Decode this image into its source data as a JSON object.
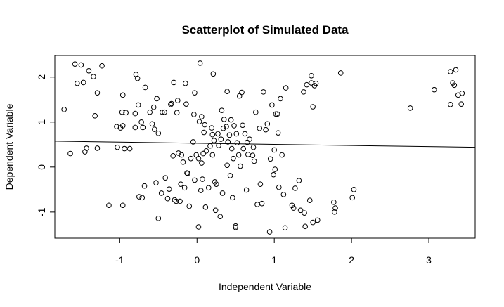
{
  "chart_data": {
    "type": "scatter",
    "title": "Scatterplot of Simulated Data",
    "xlabel": "Independent Variable",
    "ylabel": "Dependent Variable",
    "xlim": [
      -1.84,
      3.6
    ],
    "ylim": [
      -1.58,
      2.48
    ],
    "x_ticks": [
      -1,
      0,
      1,
      2,
      3
    ],
    "y_ticks": [
      -1,
      0,
      1,
      2
    ],
    "x_tick_labels": [
      "-1",
      "0",
      "1",
      "2",
      "3"
    ],
    "y_tick_labels": [
      "-1",
      "0",
      "1",
      "2"
    ],
    "grid": false,
    "fit_line": {
      "intercept": 0.53,
      "slope": -0.025
    },
    "points": [
      [
        -1.72,
        1.28
      ],
      [
        -1.64,
        0.3
      ],
      [
        -1.58,
        2.29
      ],
      [
        -1.55,
        1.86
      ],
      [
        -1.5,
        2.27
      ],
      [
        -1.47,
        1.88
      ],
      [
        -1.45,
        0.34
      ],
      [
        -1.43,
        0.42
      ],
      [
        -1.4,
        2.14
      ],
      [
        -1.34,
        2.01
      ],
      [
        -1.32,
        1.14
      ],
      [
        -1.29,
        1.65
      ],
      [
        -1.29,
        0.42
      ],
      [
        -1.23,
        2.25
      ],
      [
        -1.14,
        -0.85
      ],
      [
        -1.04,
        0.9
      ],
      [
        -1.03,
        0.44
      ],
      [
        -0.99,
        0.87
      ],
      [
        -0.97,
        1.22
      ],
      [
        -0.96,
        0.92
      ],
      [
        -0.96,
        1.6
      ],
      [
        -0.96,
        -0.85
      ],
      [
        -0.94,
        0.41
      ],
      [
        -0.92,
        1.21
      ],
      [
        -0.87,
        0.41
      ],
      [
        -0.8,
        1.19
      ],
      [
        -0.8,
        0.88
      ],
      [
        -0.79,
        2.06
      ],
      [
        -0.77,
        1.97
      ],
      [
        -0.76,
        1.38
      ],
      [
        -0.75,
        -0.66
      ],
      [
        -0.72,
        1.0
      ],
      [
        -0.71,
        -0.68
      ],
      [
        -0.7,
        0.88
      ],
      [
        -0.68,
        -0.42
      ],
      [
        -0.67,
        1.77
      ],
      [
        -0.61,
        1.22
      ],
      [
        -0.58,
        0.96
      ],
      [
        -0.56,
        1.33
      ],
      [
        -0.55,
        0.84
      ],
      [
        -0.53,
        -0.35
      ],
      [
        -0.52,
        1.52
      ],
      [
        -0.5,
        -1.14
      ],
      [
        -0.5,
        0.75
      ],
      [
        -0.46,
        -0.58
      ],
      [
        -0.45,
        1.22
      ],
      [
        -0.42,
        1.22
      ],
      [
        -0.41,
        -0.24
      ],
      [
        -0.38,
        -0.7
      ],
      [
        -0.36,
        -0.49
      ],
      [
        -0.34,
        1.39
      ],
      [
        -0.33,
        1.41
      ],
      [
        -0.31,
        0.25
      ],
      [
        -0.3,
        1.88
      ],
      [
        -0.29,
        -0.73
      ],
      [
        -0.27,
        -0.76
      ],
      [
        -0.26,
        1.21
      ],
      [
        -0.25,
        1.48
      ],
      [
        -0.24,
        0.31
      ],
      [
        -0.22,
        -0.76
      ],
      [
        -0.21,
        -0.38
      ],
      [
        -0.2,
        0.27
      ],
      [
        -0.18,
        0.11
      ],
      [
        -0.16,
        -0.46
      ],
      [
        -0.15,
        1.86
      ],
      [
        -0.14,
        1.4
      ],
      [
        -0.13,
        -0.13
      ],
      [
        -0.12,
        -0.14
      ],
      [
        -0.1,
        -0.87
      ],
      [
        -0.08,
        0.19
      ],
      [
        -0.05,
        0.56
      ],
      [
        -0.04,
        1.17
      ],
      [
        -0.03,
        -0.29
      ],
      [
        -0.03,
        1.65
      ],
      [
        -0.01,
        0.27
      ],
      [
        0.02,
        -1.33
      ],
      [
        0.02,
        0.19
      ],
      [
        0.03,
        1.01
      ],
      [
        0.04,
        2.31
      ],
      [
        0.05,
        -0.52
      ],
      [
        0.06,
        1.12
      ],
      [
        0.06,
        0.09
      ],
      [
        0.07,
        -0.27
      ],
      [
        0.08,
        0.3
      ],
      [
        0.09,
        0.77
      ],
      [
        0.1,
        0.94
      ],
      [
        0.11,
        -0.89
      ],
      [
        0.12,
        0.36
      ],
      [
        0.15,
        -0.46
      ],
      [
        0.17,
        0.47
      ],
      [
        0.19,
        0.87
      ],
      [
        0.2,
        0.27
      ],
      [
        0.2,
        0.72
      ],
      [
        0.21,
        2.07
      ],
      [
        0.22,
        0.59
      ],
      [
        0.23,
        -0.33
      ],
      [
        0.24,
        -0.96
      ],
      [
        0.25,
        -0.38
      ],
      [
        0.27,
        0.74
      ],
      [
        0.28,
        0.48
      ],
      [
        0.3,
        -1.1
      ],
      [
        0.31,
        0.62
      ],
      [
        0.32,
        1.26
      ],
      [
        0.33,
        -0.58
      ],
      [
        0.34,
        0.86
      ],
      [
        0.35,
        1.06
      ],
      [
        0.38,
        0.9
      ],
      [
        0.39,
        1.68
      ],
      [
        0.39,
        0.04
      ],
      [
        0.4,
        0.56
      ],
      [
        0.42,
        0.71
      ],
      [
        0.43,
        -0.19
      ],
      [
        0.44,
        1.05
      ],
      [
        0.45,
        0.41
      ],
      [
        0.46,
        -0.68
      ],
      [
        0.47,
        0.19
      ],
      [
        0.48,
        0.92
      ],
      [
        0.5,
        -1.34
      ],
      [
        0.5,
        -1.31
      ],
      [
        0.51,
        0.74
      ],
      [
        0.52,
        0.54
      ],
      [
        0.54,
        0.27
      ],
      [
        0.55,
        1.58
      ],
      [
        0.56,
        0.02
      ],
      [
        0.58,
        1.66
      ],
      [
        0.59,
        0.93
      ],
      [
        0.6,
        0.41
      ],
      [
        0.62,
        0.74
      ],
      [
        0.64,
        -0.51
      ],
      [
        0.65,
        0.55
      ],
      [
        0.66,
        0.28
      ],
      [
        0.68,
        0.62
      ],
      [
        0.72,
        0.26
      ],
      [
        0.73,
        0.44
      ],
      [
        0.74,
        0.13
      ],
      [
        0.76,
        1.22
      ],
      [
        0.78,
        -0.83
      ],
      [
        0.81,
        0.86
      ],
      [
        0.82,
        -0.38
      ],
      [
        0.84,
        -0.81
      ],
      [
        0.86,
        1.67
      ],
      [
        0.89,
        0.83
      ],
      [
        0.91,
        0.96
      ],
      [
        0.94,
        -1.44
      ],
      [
        0.95,
        0.18
      ],
      [
        0.97,
        1.38
      ],
      [
        0.99,
        -0.17
      ],
      [
        1.0,
        0.38
      ],
      [
        1.01,
        -0.05
      ],
      [
        1.02,
        1.18
      ],
      [
        1.04,
        1.18
      ],
      [
        1.05,
        0.76
      ],
      [
        1.06,
        -0.45
      ],
      [
        1.08,
        1.52
      ],
      [
        1.1,
        0.27
      ],
      [
        1.12,
        -0.61
      ],
      [
        1.14,
        -1.35
      ],
      [
        1.15,
        1.76
      ],
      [
        1.23,
        -0.85
      ],
      [
        1.25,
        -0.91
      ],
      [
        1.27,
        -0.47
      ],
      [
        1.32,
        -0.3
      ],
      [
        1.34,
        -0.96
      ],
      [
        1.38,
        1.67
      ],
      [
        1.39,
        -1.02
      ],
      [
        1.4,
        -1.32
      ],
      [
        1.42,
        1.83
      ],
      [
        1.46,
        -0.74
      ],
      [
        1.48,
        2.03
      ],
      [
        1.48,
        1.87
      ],
      [
        1.5,
        1.34
      ],
      [
        1.5,
        -1.23
      ],
      [
        1.52,
        1.81
      ],
      [
        1.54,
        1.86
      ],
      [
        1.56,
        -1.18
      ],
      [
        1.77,
        -0.78
      ],
      [
        1.78,
        -1.0
      ],
      [
        1.79,
        -0.91
      ],
      [
        1.86,
        2.09
      ],
      [
        2.01,
        -0.68
      ],
      [
        2.03,
        -0.5
      ],
      [
        2.76,
        1.31
      ],
      [
        3.07,
        1.72
      ],
      [
        3.28,
        2.12
      ],
      [
        3.28,
        1.39
      ],
      [
        3.31,
        1.87
      ],
      [
        3.33,
        1.82
      ],
      [
        3.35,
        2.16
      ],
      [
        3.38,
        1.6
      ],
      [
        3.42,
        1.4
      ],
      [
        3.43,
        1.64
      ]
    ]
  }
}
